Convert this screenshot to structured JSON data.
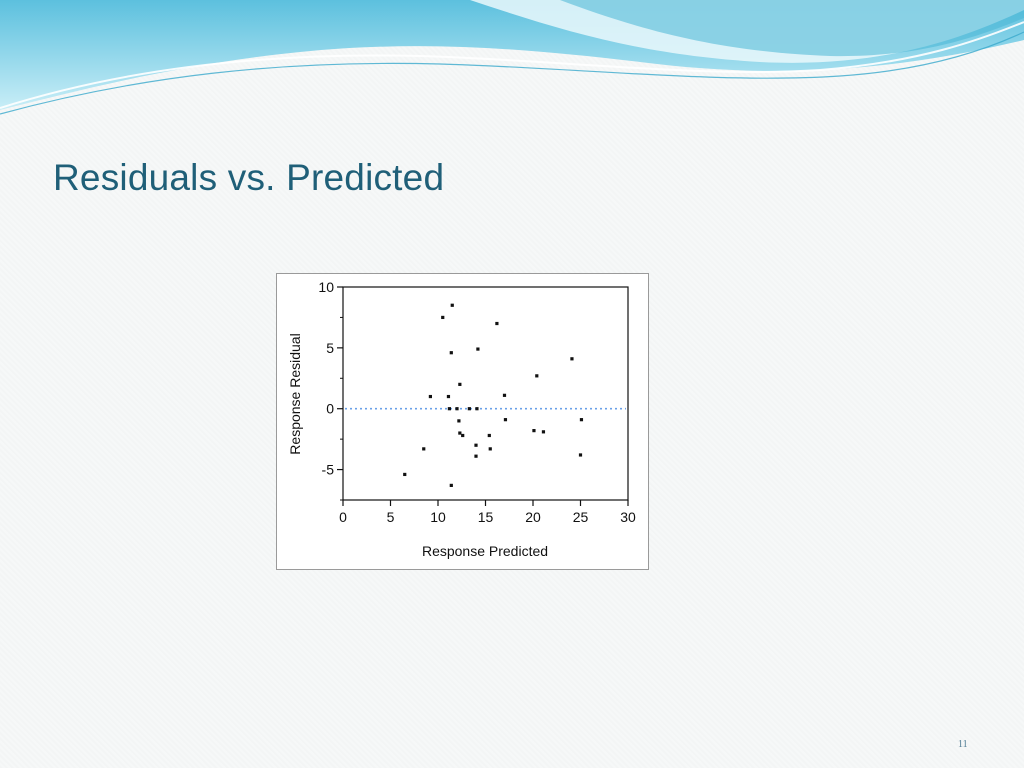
{
  "slide": {
    "title": "Residuals vs. Predicted",
    "page_number": "11"
  },
  "colors": {
    "title": "#1f5f78",
    "wave_dark": "#4ab8d6",
    "wave_light": "#a9e3f0",
    "zero_line": "#6aa0e8",
    "points": "#111111"
  },
  "chart_data": {
    "type": "scatter",
    "xlabel": "Response Predicted",
    "ylabel": "Response Residual",
    "xlim": [
      0,
      30
    ],
    "ylim": [
      -7.5,
      10
    ],
    "xticks": [
      0,
      5,
      10,
      15,
      20,
      25,
      30
    ],
    "yticks": [
      -5,
      0,
      5,
      10
    ],
    "grid": false,
    "reference_line": {
      "y": 0,
      "style": "dotted"
    },
    "points": [
      {
        "x": 6.5,
        "y": -5.4
      },
      {
        "x": 8.5,
        "y": -3.3
      },
      {
        "x": 9.2,
        "y": 1.0
      },
      {
        "x": 10.5,
        "y": 7.5
      },
      {
        "x": 11.1,
        "y": 1.0
      },
      {
        "x": 11.2,
        "y": 0.0
      },
      {
        "x": 11.4,
        "y": 4.6
      },
      {
        "x": 11.4,
        "y": -6.3
      },
      {
        "x": 11.5,
        "y": 8.5
      },
      {
        "x": 12.0,
        "y": 0.0
      },
      {
        "x": 12.2,
        "y": -1.0
      },
      {
        "x": 12.3,
        "y": 2.0
      },
      {
        "x": 12.3,
        "y": -2.0
      },
      {
        "x": 12.6,
        "y": -2.2
      },
      {
        "x": 13.3,
        "y": 0.0
      },
      {
        "x": 14.0,
        "y": -3.0
      },
      {
        "x": 14.0,
        "y": -3.9
      },
      {
        "x": 14.1,
        "y": 0.0
      },
      {
        "x": 14.2,
        "y": 4.9
      },
      {
        "x": 15.4,
        "y": -2.2
      },
      {
        "x": 15.5,
        "y": -3.3
      },
      {
        "x": 16.2,
        "y": 7.0
      },
      {
        "x": 17.0,
        "y": 1.1
      },
      {
        "x": 17.1,
        "y": -0.9
      },
      {
        "x": 20.1,
        "y": -1.8
      },
      {
        "x": 20.4,
        "y": 2.7
      },
      {
        "x": 21.1,
        "y": -1.9
      },
      {
        "x": 24.1,
        "y": 4.1
      },
      {
        "x": 25.0,
        "y": -3.8
      },
      {
        "x": 25.1,
        "y": -0.9
      }
    ]
  }
}
